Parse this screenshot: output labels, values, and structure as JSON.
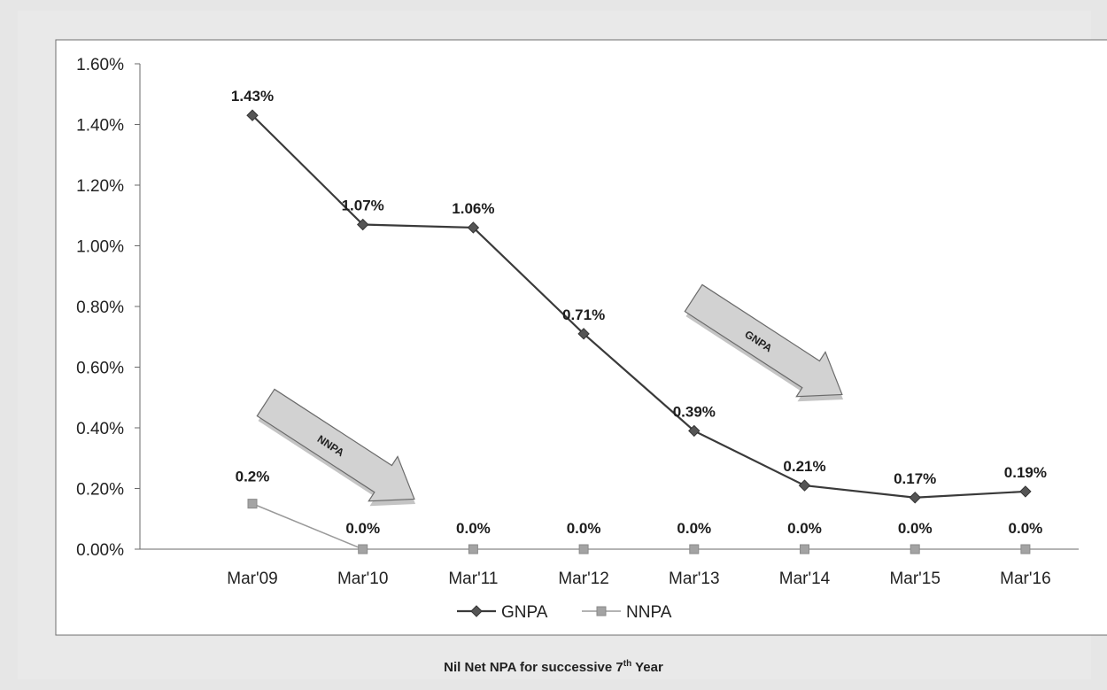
{
  "chart_data": {
    "type": "line",
    "categories": [
      "Mar'09",
      "Mar'10",
      "Mar'11",
      "Mar'12",
      "Mar'13",
      "Mar'14",
      "Mar'15",
      "Mar'16"
    ],
    "series": [
      {
        "name": "GNPA",
        "values": [
          1.43,
          1.07,
          1.06,
          0.71,
          0.39,
          0.21,
          0.17,
          0.19
        ],
        "labels": [
          "1.43%",
          "1.07%",
          "1.06%",
          "0.71%",
          "0.39%",
          "0.21%",
          "0.17%",
          "0.19%"
        ],
        "color": "#3a3a3a",
        "marker": "diamond"
      },
      {
        "name": "NNPA",
        "values": [
          0.15,
          0.0,
          0.0,
          0.0,
          0.0,
          0.0,
          0.0,
          0.0
        ],
        "labels": [
          "0.2%",
          "0.0%",
          "0.0%",
          "0.0%",
          "0.0%",
          "0.0%",
          "0.0%",
          "0.0%"
        ],
        "color": "#9a9a9a",
        "marker": "square"
      }
    ],
    "yticks": [
      "0.00%",
      "0.20%",
      "0.40%",
      "0.60%",
      "0.80%",
      "1.00%",
      "1.20%",
      "1.40%",
      "1.60%"
    ],
    "ylim": [
      0,
      1.6
    ],
    "legend": "bottom",
    "grid": false,
    "annotations": [
      "GNPA",
      "NNPA"
    ],
    "caption": {
      "text": "Nil Net NPA for successive 7",
      "superscript": "th",
      "suffix": " Year"
    }
  }
}
